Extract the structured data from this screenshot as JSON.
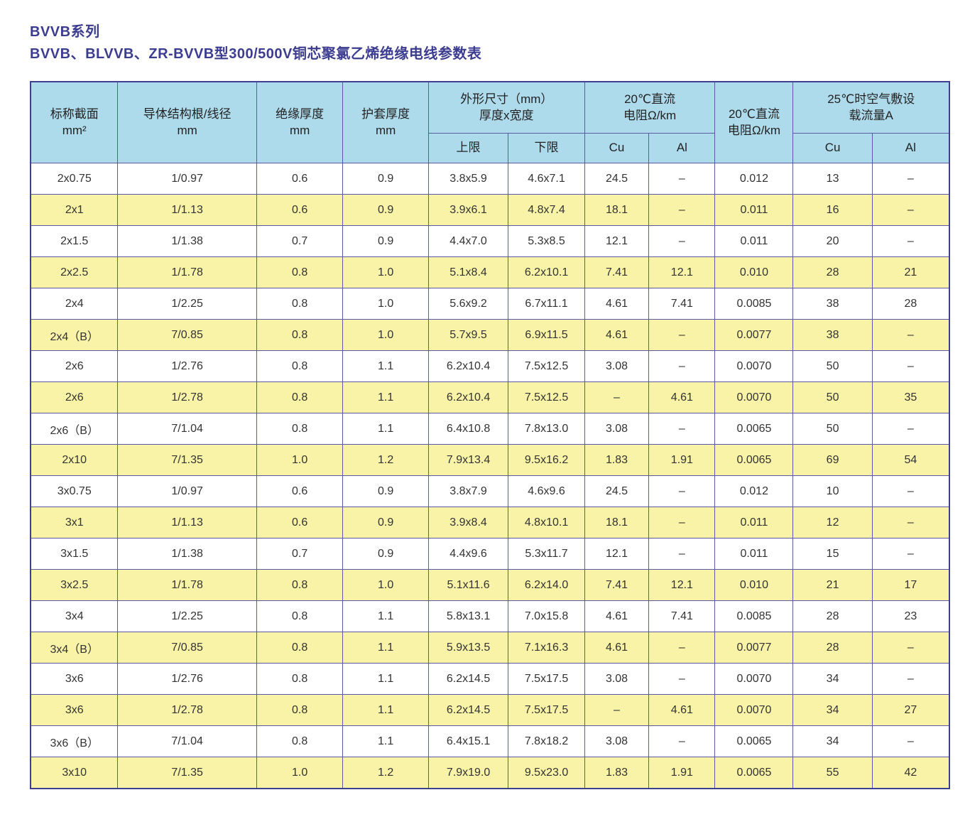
{
  "page": {
    "title_line1": "BVVB系列",
    "title_line2": "BVVB、BLVVB、ZR-BVVB型300/500V铜芯聚氯乙烯绝缘电线参数表"
  },
  "colors": {
    "title_text": "#3c3c90",
    "header_bg": "#aedbec",
    "row_alt_bg": "#f9f3a8",
    "border": "#5b5ba3",
    "outer_border": "#3f3f8f",
    "cell_text": "#333333"
  },
  "table": {
    "header": {
      "nominal": "标称截面\nmm²",
      "conductor": "导体结构根/线径\nmm",
      "insulation": "绝缘厚度\nmm",
      "sheath": "护套厚度\nmm",
      "dimensions": "外形尺寸（mm）\n厚度x宽度",
      "dc_resistance": "20℃直流\n电阻Ω/km",
      "dc_resistance_single": "20℃直流\n电阻Ω/km",
      "ampacity": "25℃时空气敷设\n载流量A",
      "sub": {
        "upper": "上限",
        "lower": "下限",
        "cu1": "Cu",
        "al1": "Al",
        "cu2": "Cu",
        "al2": "Al"
      }
    },
    "rows": [
      [
        "2x0.75",
        "1/0.97",
        "0.6",
        "0.9",
        "3.8x5.9",
        "4.6x7.1",
        "24.5",
        "–",
        "0.012",
        "13",
        "–"
      ],
      [
        "2x1",
        "1/1.13",
        "0.6",
        "0.9",
        "3.9x6.1",
        "4.8x7.4",
        "18.1",
        "–",
        "0.011",
        "16",
        "–"
      ],
      [
        "2x1.5",
        "1/1.38",
        "0.7",
        "0.9",
        "4.4x7.0",
        "5.3x8.5",
        "12.1",
        "–",
        "0.011",
        "20",
        "–"
      ],
      [
        "2x2.5",
        "1/1.78",
        "0.8",
        "1.0",
        "5.1x8.4",
        "6.2x10.1",
        "7.41",
        "12.1",
        "0.010",
        "28",
        "21"
      ],
      [
        "2x4",
        "1/2.25",
        "0.8",
        "1.0",
        "5.6x9.2",
        "6.7x11.1",
        "4.61",
        "7.41",
        "0.0085",
        "38",
        "28"
      ],
      [
        "2x4（B）",
        "7/0.85",
        "0.8",
        "1.0",
        "5.7x9.5",
        "6.9x11.5",
        "4.61",
        "–",
        "0.0077",
        "38",
        "–"
      ],
      [
        "2x6",
        "1/2.76",
        "0.8",
        "1.1",
        "6.2x10.4",
        "7.5x12.5",
        "3.08",
        "–",
        "0.0070",
        "50",
        "–"
      ],
      [
        "2x6",
        "1/2.78",
        "0.8",
        "1.1",
        "6.2x10.4",
        "7.5x12.5",
        "–",
        "4.61",
        "0.0070",
        "50",
        "35"
      ],
      [
        "2x6（B）",
        "7/1.04",
        "0.8",
        "1.1",
        "6.4x10.8",
        "7.8x13.0",
        "3.08",
        "–",
        "0.0065",
        "50",
        "–"
      ],
      [
        "2x10",
        "7/1.35",
        "1.0",
        "1.2",
        "7.9x13.4",
        "9.5x16.2",
        "1.83",
        "1.91",
        "0.0065",
        "69",
        "54"
      ],
      [
        "3x0.75",
        "1/0.97",
        "0.6",
        "0.9",
        "3.8x7.9",
        "4.6x9.6",
        "24.5",
        "–",
        "0.012",
        "10",
        "–"
      ],
      [
        "3x1",
        "1/1.13",
        "0.6",
        "0.9",
        "3.9x8.4",
        "4.8x10.1",
        "18.1",
        "–",
        "0.011",
        "12",
        "–"
      ],
      [
        "3x1.5",
        "1/1.38",
        "0.7",
        "0.9",
        "4.4x9.6",
        "5.3x11.7",
        "12.1",
        "–",
        "0.011",
        "15",
        "–"
      ],
      [
        "3x2.5",
        "1/1.78",
        "0.8",
        "1.0",
        "5.1x11.6",
        "6.2x14.0",
        "7.41",
        "12.1",
        "0.010",
        "21",
        "17"
      ],
      [
        "3x4",
        "1/2.25",
        "0.8",
        "1.1",
        "5.8x13.1",
        "7.0x15.8",
        "4.61",
        "7.41",
        "0.0085",
        "28",
        "23"
      ],
      [
        "3x4（B）",
        "7/0.85",
        "0.8",
        "1.1",
        "5.9x13.5",
        "7.1x16.3",
        "4.61",
        "–",
        "0.0077",
        "28",
        "–"
      ],
      [
        "3x6",
        "1/2.76",
        "0.8",
        "1.1",
        "6.2x14.5",
        "7.5x17.5",
        "3.08",
        "–",
        "0.0070",
        "34",
        "–"
      ],
      [
        "3x6",
        "1/2.78",
        "0.8",
        "1.1",
        "6.2x14.5",
        "7.5x17.5",
        "–",
        "4.61",
        "0.0070",
        "34",
        "27"
      ],
      [
        "3x6（B）",
        "7/1.04",
        "0.8",
        "1.1",
        "6.4x15.1",
        "7.8x18.2",
        "3.08",
        "–",
        "0.0065",
        "34",
        "–"
      ],
      [
        "3x10",
        "7/1.35",
        "1.0",
        "1.2",
        "7.9x19.0",
        "9.5x23.0",
        "1.83",
        "1.91",
        "0.0065",
        "55",
        "42"
      ]
    ]
  }
}
